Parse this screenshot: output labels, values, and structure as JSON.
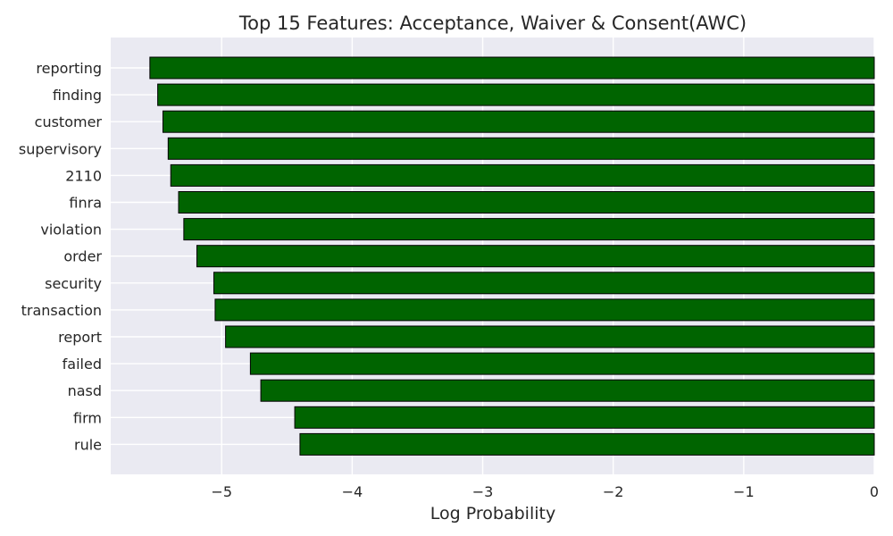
{
  "chart_data": {
    "type": "bar",
    "orientation": "horizontal",
    "title": "Top 15 Features: Acceptance, Waiver & Consent(AWC)",
    "xlabel": "Log Probability",
    "ylabel": "",
    "categories": [
      "reporting",
      "finding",
      "customer",
      "supervisory",
      "2110",
      "finra",
      "violation",
      "order",
      "security",
      "transaction",
      "report",
      "failed",
      "nasd",
      "firm",
      "rule"
    ],
    "values": [
      -5.55,
      -5.49,
      -5.45,
      -5.41,
      -5.39,
      -5.33,
      -5.29,
      -5.19,
      -5.06,
      -5.05,
      -4.97,
      -4.78,
      -4.7,
      -4.44,
      -4.4
    ],
    "xlim": [
      -5.85,
      0
    ],
    "xticks": [
      -5,
      -4,
      -3,
      -2,
      -1,
      0
    ],
    "xtick_labels": [
      "−5",
      "−4",
      "−3",
      "−2",
      "−1",
      "0"
    ],
    "grid": true,
    "colors": {
      "bar": "#006400",
      "edge": "#000000",
      "background": "#eaeaf2",
      "grid": "#ffffff"
    }
  }
}
